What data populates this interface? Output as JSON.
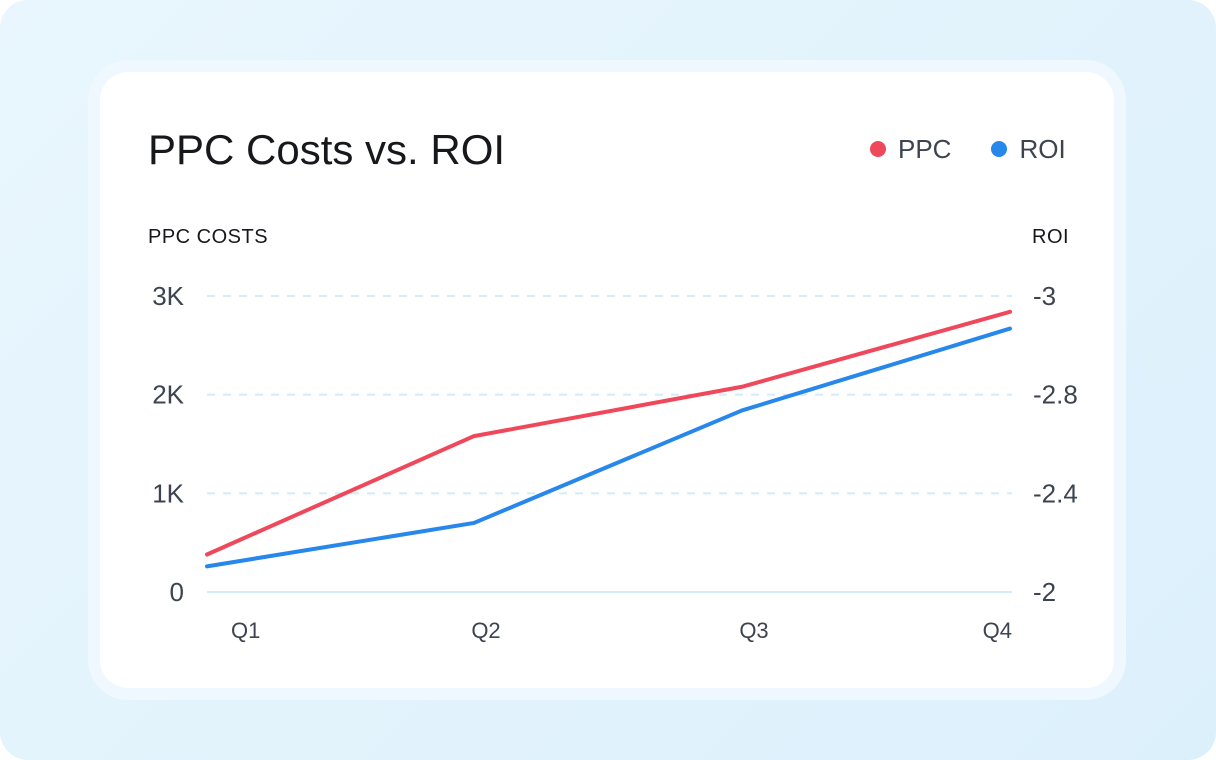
{
  "colors": {
    "ppc": "#f0485b",
    "roi": "#2787ea",
    "grid": "#d4ebfa",
    "axis_text": "#3d4450"
  },
  "legend": [
    {
      "label": "PPC",
      "color": "#f0485b"
    },
    {
      "label": "ROI",
      "color": "#2787ea"
    }
  ],
  "chart_data": {
    "type": "line",
    "title": "PPC Costs vs. ROI",
    "xlabel": "",
    "categories": [
      "Q1",
      "Q2",
      "Q3",
      "Q4"
    ],
    "y_left": {
      "label": "PPC COSTS",
      "ylim": [
        0,
        3000
      ],
      "ticks": [
        0,
        1000,
        2000,
        3000
      ],
      "tick_labels": [
        "0",
        "1K",
        "2K",
        "3K"
      ]
    },
    "y_right": {
      "label": "ROI",
      "tick_labels": [
        "-2",
        "-2.4",
        "-2.8",
        "-3"
      ]
    },
    "series": [
      {
        "name": "PPC",
        "axis": "left",
        "values": [
          380,
          1580,
          2080,
          2840
        ]
      },
      {
        "name": "ROI",
        "axis": "left",
        "values": [
          260,
          700,
          1840,
          2670
        ]
      }
    ],
    "grid": true,
    "legend_position": "top-right"
  }
}
